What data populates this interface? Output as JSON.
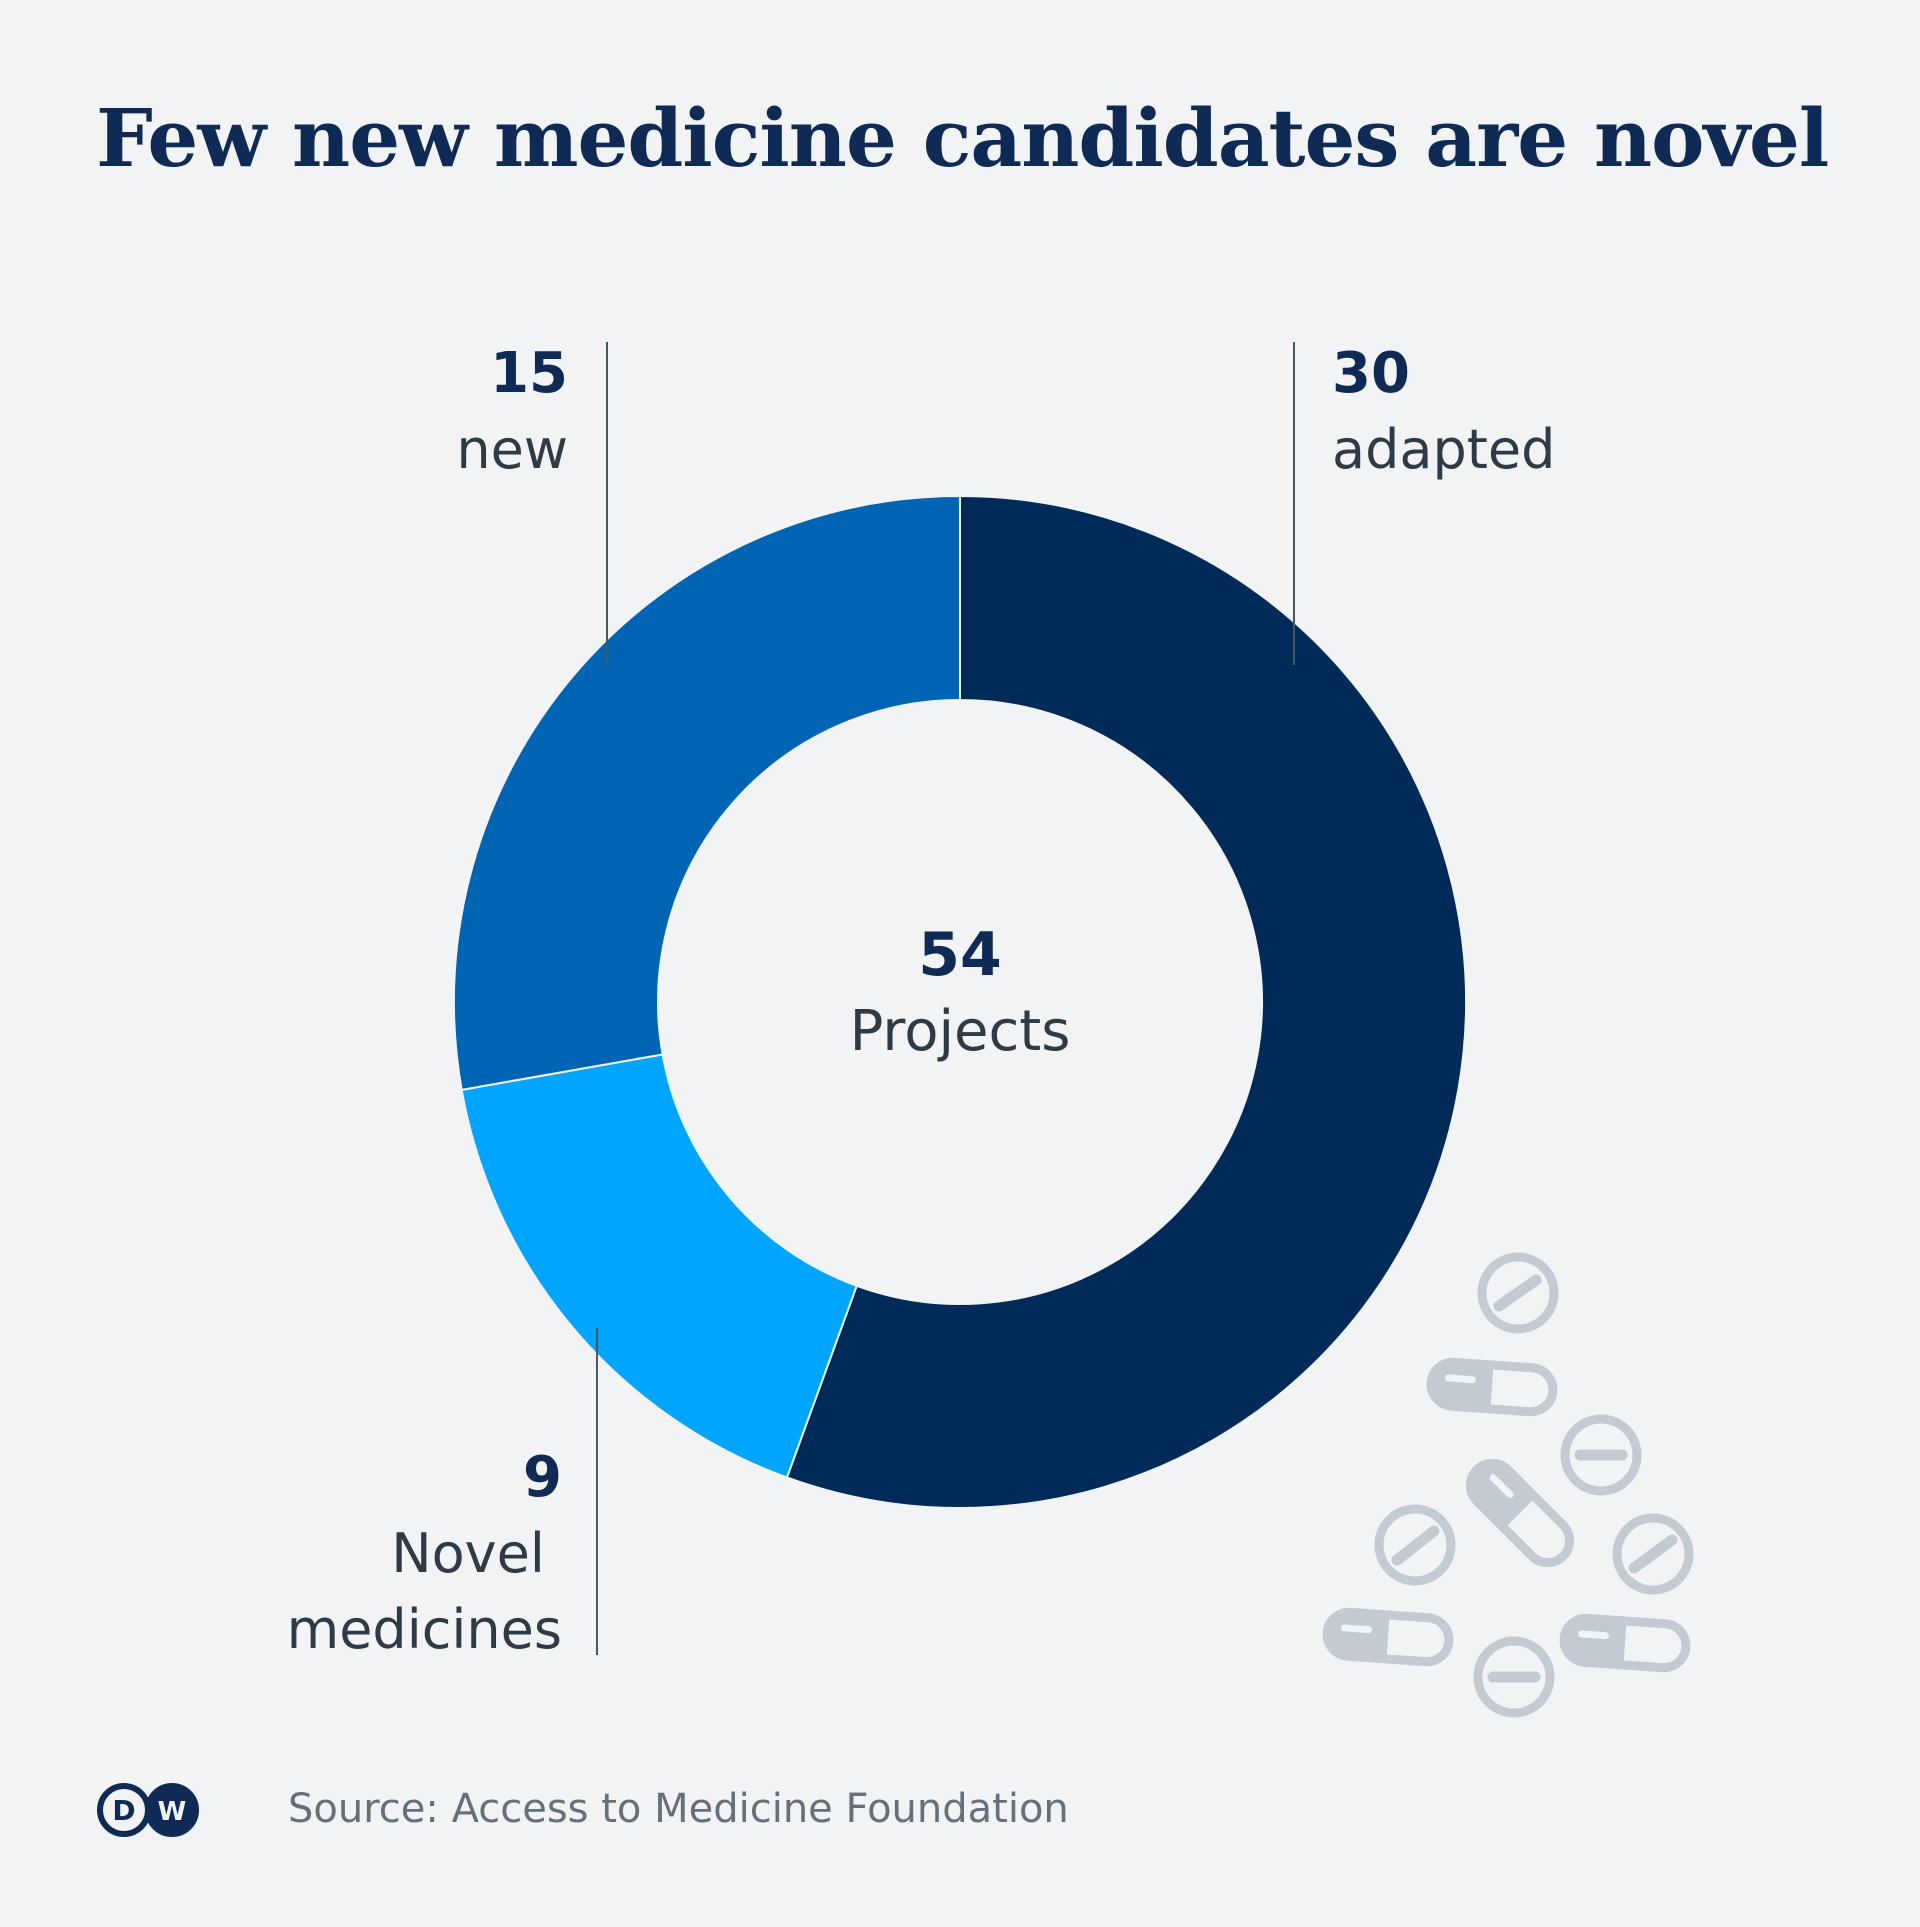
{
  "title": "Few new medicine candidates are novel",
  "source": "Source: Access to Medicine Foundation",
  "logo_text": "DW",
  "icons": [
    "pill-icon",
    "capsule-icon"
  ],
  "colors": {
    "background": "#f1f3f5",
    "title": "#0e2a55",
    "adapted": "#002b59",
    "new": "#0064b4",
    "novel": "#00a5ff",
    "pills": "#c4cad1"
  },
  "chart_data": {
    "type": "pie",
    "variant": "donut",
    "total": 54,
    "center_label": "Projects",
    "slices": [
      {
        "label": "adapted",
        "value": 30,
        "color": "#002b59"
      },
      {
        "label": "Novel medicines",
        "value": 9,
        "color": "#00a5ff"
      },
      {
        "label": "new",
        "value": 15,
        "color": "#0064b4"
      }
    ]
  }
}
